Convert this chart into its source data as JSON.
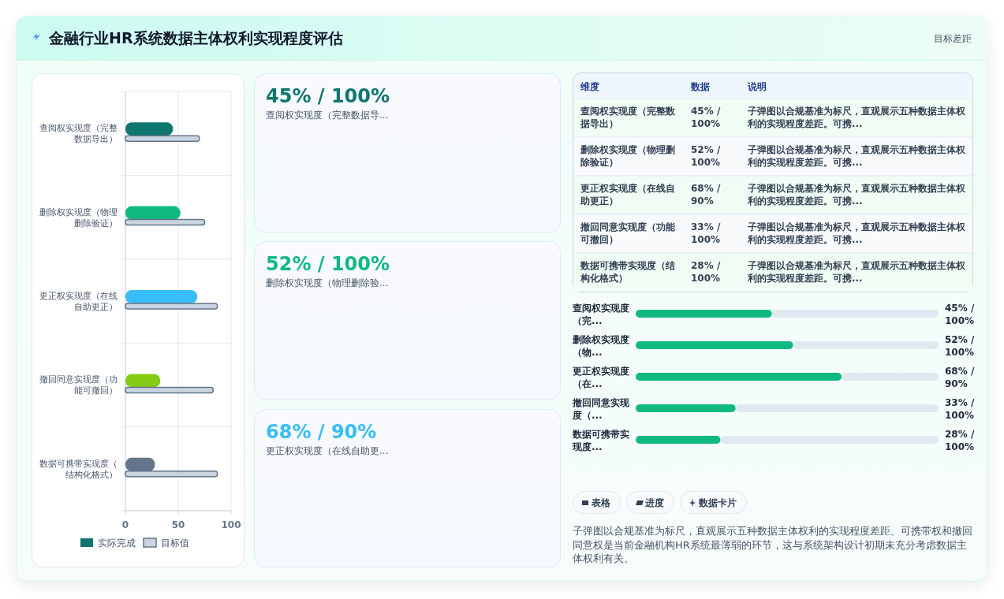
{
  "chart_data": [
    {
      "type": "other",
      "title": "金融行业HR系统数据主体权利实现程度评估",
      "annotations": [
        "目标差距"
      ]
    },
    {
      "type": "bar",
      "orientation": "horizontal",
      "categories": [
        "查阅权实现度（完整数据导出）",
        "删除权实现度（物理删除验证）",
        "更正权实现度（在线自助更正）",
        "撤回同意实现度（功能可撤回）",
        "数据可携带实现度（结构化格式）"
      ],
      "series": [
        {
          "name": "实际完成",
          "color": "#0f766e",
          "colors": [
            "#0f766e",
            "#10b981",
            "#38bdf8",
            "#84cc16",
            "#64748b"
          ],
          "values": [
            45,
            52,
            68,
            33,
            28
          ]
        },
        {
          "name": "目标值",
          "color": "#cbd5e1",
          "values": [
            70,
            75,
            87,
            83,
            87
          ]
        }
      ],
      "xlim": [
        0,
        100
      ],
      "xticks": [
        0,
        50,
        100
      ],
      "grid": true,
      "legend": "bottom"
    },
    {
      "type": "other",
      "title": "45% / 100%",
      "subtitle": "查阅权实现度（完整数据导...",
      "colors": [
        "#0f766e"
      ]
    },
    {
      "type": "other",
      "title": "52% / 100%",
      "subtitle": "删除权实现度（物理删除验...",
      "colors": [
        "#10b981"
      ]
    },
    {
      "type": "other",
      "title": "68% / 90%",
      "subtitle": "更正权实现度（在线自助更...",
      "colors": [
        "#38bdf8"
      ]
    },
    {
      "type": "other",
      "categories": [
        "维度",
        "数据",
        "说明"
      ],
      "annotations": [
        "查阅权实现度（完整数据导出）",
        "45% / 100%",
        "子弹图以合规基准为标尺，直观展示五种数据主体权利的实现程度差距。可携...",
        "删除权实现度（物理删除验证）",
        "52% / 100%",
        "子弹图以合规基准为标尺，直观展示五种数据主体权利的实现程度差距。可携...",
        "更正权实现度（在线自助更正）",
        "68% / 90%",
        "子弹图以合规基准为标尺，直观展示五种数据主体权利的实现程度差距。可携...",
        "撤回同意实现度（功能可撤回）",
        "33% / 100%",
        "子弹图以合规基准为标尺，直观展示五种数据主体权利的实现程度差距。可携...",
        "数据可携带实现度（结构化格式）",
        "28% / 100%",
        "子弹图以合规基准为标尺，直观展示五种数据主体权利的实现程度差距。可携..."
      ]
    },
    {
      "type": "bar",
      "orientation": "horizontal",
      "categories": [
        "查阅权实现度（完...",
        "删除权实现度（物...",
        "更正权实现度（在...",
        "撤回同意实现度（...",
        "数据可携带实现度..."
      ],
      "series": [
        {
          "color": "#10b981",
          "values": [
            45,
            52,
            68,
            33,
            28
          ],
          "value_labels": [
            "45% / 100%",
            "52% / 100%",
            "68% / 90%",
            "33% / 100%",
            "28% / 100%"
          ]
        },
        {
          "color": "#e2e8f0",
          "values": [
            55,
            48,
            32,
            67,
            72
          ]
        }
      ],
      "stacked": true,
      "xlim": [
        0,
        100
      ]
    },
    {
      "type": "other",
      "annotations": [
        "表格",
        "进度",
        "数据卡片",
        "子弹图以合规基准为标尺，直观展示五种数据主体权利的实现程度差距。可携带权和撤回同意权是当前金融机构HR系统最薄弱的环节，这与系统架构设计初期未充分考虑数据主体权利有关。"
      ]
    }
  ]
}
